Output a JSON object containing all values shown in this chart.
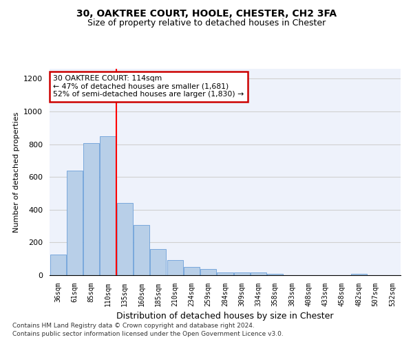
{
  "title_line1": "30, OAKTREE COURT, HOOLE, CHESTER, CH2 3FA",
  "title_line2": "Size of property relative to detached houses in Chester",
  "xlabel": "Distribution of detached houses by size in Chester",
  "ylabel": "Number of detached properties",
  "categories": [
    "36sqm",
    "61sqm",
    "85sqm",
    "110sqm",
    "135sqm",
    "160sqm",
    "185sqm",
    "210sqm",
    "234sqm",
    "259sqm",
    "284sqm",
    "309sqm",
    "334sqm",
    "358sqm",
    "383sqm",
    "408sqm",
    "433sqm",
    "458sqm",
    "482sqm",
    "507sqm",
    "532sqm"
  ],
  "values": [
    128,
    638,
    805,
    850,
    440,
    305,
    158,
    93,
    50,
    38,
    18,
    18,
    18,
    10,
    0,
    0,
    0,
    0,
    10,
    0,
    0
  ],
  "bar_color": "#b8cfe8",
  "bar_edge_color": "#6a9fd8",
  "red_line_x": 3.5,
  "annotation_text": "30 OAKTREE COURT: 114sqm\n← 47% of detached houses are smaller (1,681)\n52% of semi-detached houses are larger (1,830) →",
  "annotation_box_color": "#ffffff",
  "annotation_box_edge": "#cc0000",
  "ylim": [
    0,
    1260
  ],
  "yticks": [
    0,
    200,
    400,
    600,
    800,
    1000,
    1200
  ],
  "grid_color": "#d0d0d0",
  "background_color": "#eef2fb",
  "footer_line1": "Contains HM Land Registry data © Crown copyright and database right 2024.",
  "footer_line2": "Contains public sector information licensed under the Open Government Licence v3.0."
}
